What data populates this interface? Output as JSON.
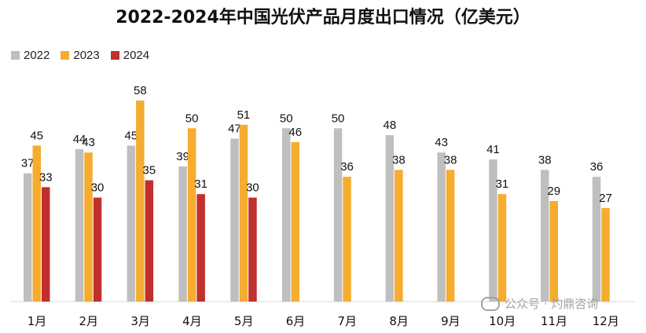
{
  "chart_data": {
    "type": "bar",
    "title": "2022-2024年中国光伏产品月度出口情况（亿美元）",
    "categories": [
      "1月",
      "2月",
      "3月",
      "4月",
      "5月",
      "6月",
      "7月",
      "8月",
      "9月",
      "10月",
      "11月",
      "12月"
    ],
    "series": [
      {
        "name": "2022",
        "color": "#bfbfbf",
        "values": [
          37,
          44,
          45,
          39,
          47,
          50,
          50,
          48,
          43,
          41,
          38,
          36
        ]
      },
      {
        "name": "2023",
        "color": "#f5ac2f",
        "values": [
          45,
          43,
          58,
          50,
          51,
          46,
          36,
          38,
          38,
          31,
          29,
          27
        ]
      },
      {
        "name": "2024",
        "color": "#c0302f",
        "values": [
          33,
          30,
          35,
          31,
          30,
          null,
          null,
          null,
          null,
          null,
          null,
          null
        ]
      }
    ],
    "xlabel": "",
    "ylabel": "",
    "ylim": [
      0,
      58
    ],
    "legend": "top-left"
  },
  "watermark": {
    "text": "公众号 · 灼鼎咨询"
  }
}
